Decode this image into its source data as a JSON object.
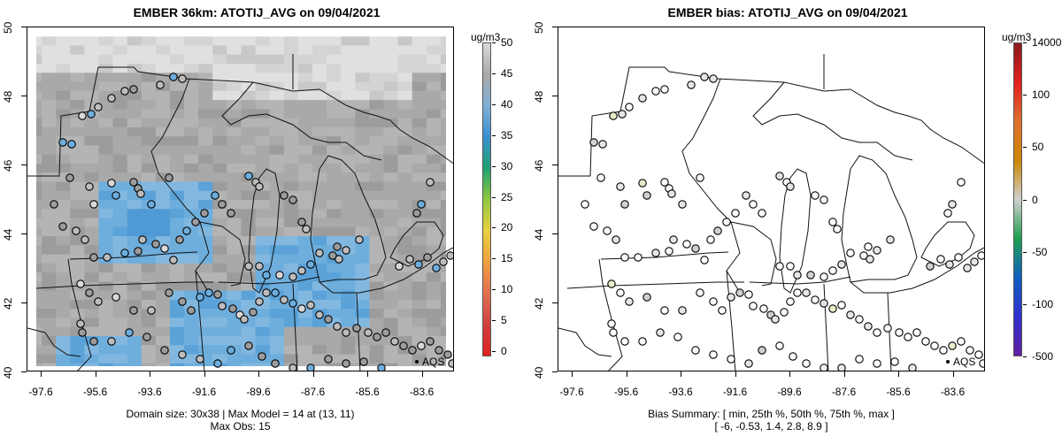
{
  "left": {
    "title": "EMBER 36km: ATOTIJ_AVG on 09/04/2021",
    "y_ticks": [
      "40",
      "42",
      "44",
      "46",
      "48",
      "50"
    ],
    "x_ticks": [
      "-97.6",
      "-95.6",
      "-93.6",
      "-91.6",
      "-89.6",
      "-87.6",
      "-85.6",
      "-83.6"
    ],
    "caption_line1": "Domain size: 30x38 | Max Model = 14 at (13, 11)",
    "caption_line2": "Max Obs: 15",
    "site_label": "AQS",
    "colorbar": {
      "units": "ug/m3",
      "labels": [
        "0",
        "5",
        "10",
        "15",
        "20",
        "25",
        "30",
        "35",
        "40",
        "45",
        "50"
      ],
      "colors": [
        "#d9d9d9",
        "#a8a8a8",
        "#7fb0d8",
        "#3a8fd0",
        "#1fa070",
        "#8fc840",
        "#e8d040",
        "#f0a040",
        "#e07050",
        "#d04040",
        "#e02020"
      ]
    }
  },
  "right": {
    "title": "EMBER bias: ATOTIJ_AVG on 09/04/2021",
    "y_ticks": [
      "40",
      "42",
      "44",
      "46",
      "48",
      "50"
    ],
    "x_ticks": [
      "-97.6",
      "-95.6",
      "-93.6",
      "-91.6",
      "-89.6",
      "-87.6",
      "-85.6",
      "-83.6"
    ],
    "caption_line1": "Bias Summary: [ min, 25th %, 50th %, 75th %, max ]",
    "caption_line2": "[ -6,   -0.53,   1.4,   2.8,   8.9 ]",
    "site_label": "AQS",
    "colorbar": {
      "units": "ug/m3",
      "labels": [
        "14000",
        "100",
        "50",
        "0",
        "-50",
        "-100",
        "-500"
      ],
      "colors": [
        "#8b1a1a",
        "#e02020",
        "#e07030",
        "#cc8800",
        "#d0d0d0",
        "#20a050",
        "#1060c0",
        "#3030d0",
        "#6020a0"
      ]
    }
  }
}
